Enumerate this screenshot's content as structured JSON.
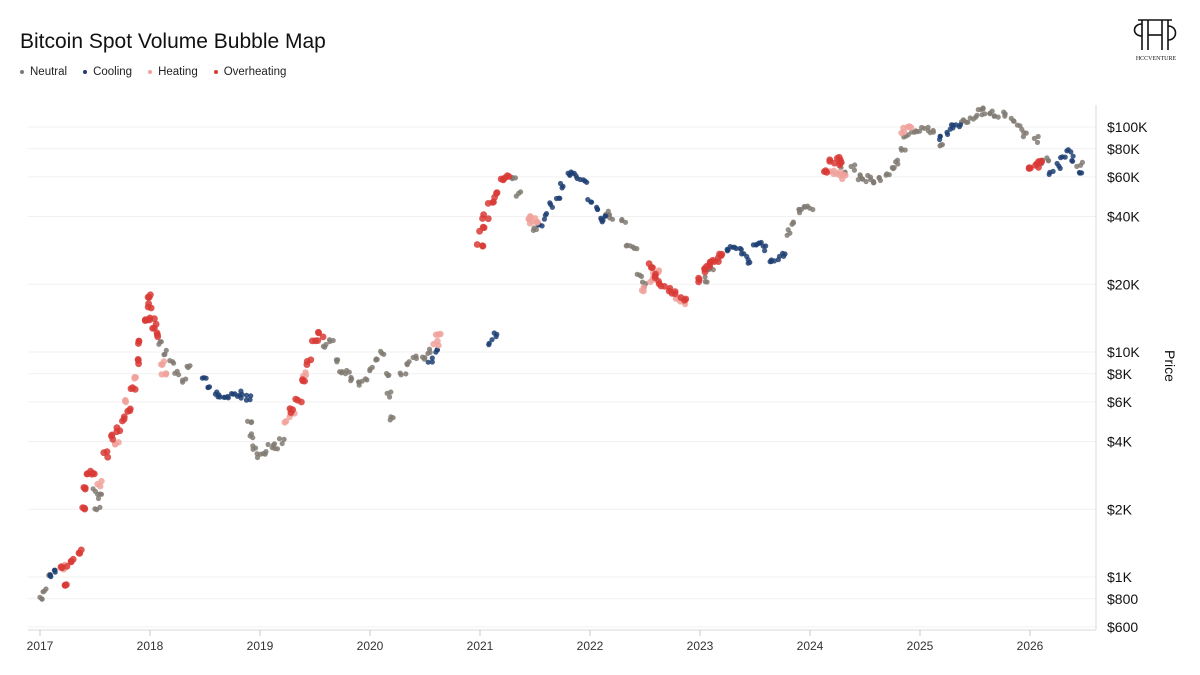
{
  "title": "Bitcoin Spot Volume Bubble Map",
  "logo_text": "HCCVENTURE",
  "legend": [
    {
      "label": "Neutral",
      "color": "#807a72"
    },
    {
      "label": "Cooling",
      "color": "#1f3f73"
    },
    {
      "label": "Heating",
      "color": "#f0a29b"
    },
    {
      "label": "Overheating",
      "color": "#d93a35"
    }
  ],
  "chart_data": {
    "type": "scatter",
    "title": "Bitcoin Spot Volume Bubble Map",
    "xlabel": "",
    "ylabel": "Price",
    "y_scale": "log",
    "ylim": [
      600,
      150000
    ],
    "xlim": [
      2017.0,
      2026.5
    ],
    "x_ticks": [
      "2017",
      "2018",
      "2019",
      "2020",
      "2021",
      "2022",
      "2023",
      "2024",
      "2025",
      "2026"
    ],
    "y_ticks": [
      {
        "value": 100000,
        "label": "$100K"
      },
      {
        "value": 80000,
        "label": "$80K"
      },
      {
        "value": 60000,
        "label": "$60K"
      },
      {
        "value": 40000,
        "label": "$40K"
      },
      {
        "value": 20000,
        "label": "$20K"
      },
      {
        "value": 10000,
        "label": "$10K"
      },
      {
        "value": 8000,
        "label": "$8K"
      },
      {
        "value": 6000,
        "label": "$6K"
      },
      {
        "value": 4000,
        "label": "$4K"
      },
      {
        "value": 2000,
        "label": "$2K"
      },
      {
        "value": 1000,
        "label": "$1K"
      },
      {
        "value": 800,
        "label": "$800"
      },
      {
        "value": 600,
        "label": "$600"
      }
    ],
    "grid": true,
    "legend_position": "top-left",
    "series": [
      {
        "name": "Neutral",
        "color": "#807a72",
        "points": [
          [
            2017.02,
            800
          ],
          [
            2017.05,
            880
          ],
          [
            2017.08,
            1000
          ],
          [
            2017.5,
            2400
          ],
          [
            2017.52,
            2000
          ],
          [
            2017.55,
            2300
          ],
          [
            2018.1,
            11000
          ],
          [
            2018.15,
            10000
          ],
          [
            2018.2,
            9000
          ],
          [
            2018.25,
            8000
          ],
          [
            2018.3,
            7500
          ],
          [
            2018.35,
            8500
          ],
          [
            2018.9,
            5000
          ],
          [
            2018.92,
            4200
          ],
          [
            2018.95,
            3800
          ],
          [
            2019.0,
            3500
          ],
          [
            2019.05,
            3600
          ],
          [
            2019.1,
            3800
          ],
          [
            2019.15,
            3800
          ],
          [
            2019.2,
            4000
          ],
          [
            2019.6,
            10500
          ],
          [
            2019.65,
            11000
          ],
          [
            2019.7,
            9000
          ],
          [
            2019.75,
            8300
          ],
          [
            2019.8,
            8200
          ],
          [
            2019.85,
            7500
          ],
          [
            2019.9,
            7300
          ],
          [
            2019.95,
            7600
          ],
          [
            2020.0,
            8500
          ],
          [
            2020.05,
            9500
          ],
          [
            2020.1,
            9800
          ],
          [
            2020.15,
            8000
          ],
          [
            2020.18,
            6500
          ],
          [
            2020.2,
            5000
          ],
          [
            2020.3,
            8000
          ],
          [
            2020.35,
            9000
          ],
          [
            2020.4,
            9400
          ],
          [
            2020.5,
            9300
          ],
          [
            2020.55,
            10000
          ],
          [
            2021.3,
            58000
          ],
          [
            2021.35,
            50000
          ],
          [
            2021.5,
            35000
          ],
          [
            2022.15,
            42000
          ],
          [
            2022.2,
            40000
          ],
          [
            2022.3,
            38000
          ],
          [
            2022.35,
            30000
          ],
          [
            2022.4,
            29000
          ],
          [
            2022.45,
            22000
          ],
          [
            2022.5,
            20000
          ],
          [
            2023.05,
            21000
          ],
          [
            2023.1,
            23000
          ],
          [
            2023.8,
            34000
          ],
          [
            2023.85,
            37000
          ],
          [
            2023.9,
            42000
          ],
          [
            2023.95,
            43000
          ],
          [
            2024.0,
            44000
          ],
          [
            2024.3,
            64000
          ],
          [
            2024.4,
            66000
          ],
          [
            2024.45,
            60000
          ],
          [
            2024.5,
            58000
          ],
          [
            2024.55,
            60000
          ],
          [
            2024.6,
            56000
          ],
          [
            2024.65,
            59000
          ],
          [
            2024.7,
            62000
          ],
          [
            2024.75,
            65000
          ],
          [
            2024.8,
            70000
          ],
          [
            2024.85,
            80000
          ],
          [
            2024.88,
            90000
          ],
          [
            2024.95,
            95000
          ],
          [
            2025.0,
            97000
          ],
          [
            2025.05,
            98000
          ],
          [
            2025.1,
            96000
          ],
          [
            2025.2,
            84000
          ],
          [
            2025.4,
            105000
          ],
          [
            2025.45,
            108000
          ],
          [
            2025.5,
            110000
          ],
          [
            2025.55,
            116000
          ],
          [
            2025.6,
            118000
          ],
          [
            2025.65,
            115000
          ],
          [
            2025.7,
            112000
          ],
          [
            2025.75,
            113000
          ],
          [
            2025.85,
            108000
          ],
          [
            2025.9,
            100000
          ],
          [
            2025.95,
            93000
          ],
          [
            2026.05,
            88000
          ],
          [
            2026.1,
            70000
          ],
          [
            2026.15,
            72000
          ],
          [
            2026.45,
            68000
          ]
        ]
      },
      {
        "name": "Cooling",
        "color": "#1f3f73",
        "points": [
          [
            2017.1,
            1000
          ],
          [
            2017.15,
            1050
          ],
          [
            2018.5,
            7500
          ],
          [
            2018.55,
            7000
          ],
          [
            2018.6,
            6500
          ],
          [
            2018.65,
            6300
          ],
          [
            2018.7,
            6400
          ],
          [
            2018.75,
            6600
          ],
          [
            2018.8,
            6500
          ],
          [
            2018.85,
            6300
          ],
          [
            2018.9,
            6300
          ],
          [
            2020.55,
            9200
          ],
          [
            2020.6,
            10000
          ],
          [
            2021.1,
            11000
          ],
          [
            2021.15,
            12000
          ],
          [
            2021.55,
            36000
          ],
          [
            2021.6,
            40000
          ],
          [
            2021.65,
            45000
          ],
          [
            2021.7,
            47000
          ],
          [
            2021.75,
            55000
          ],
          [
            2021.8,
            62000
          ],
          [
            2021.85,
            64000
          ],
          [
            2021.9,
            60000
          ],
          [
            2021.95,
            57000
          ],
          [
            2022.0,
            47000
          ],
          [
            2022.05,
            43000
          ],
          [
            2022.1,
            38000
          ],
          [
            2022.12,
            40000
          ],
          [
            2023.25,
            28000
          ],
          [
            2023.3,
            30000
          ],
          [
            2023.35,
            28000
          ],
          [
            2023.4,
            27000
          ],
          [
            2023.45,
            25000
          ],
          [
            2023.5,
            30000
          ],
          [
            2023.55,
            30000
          ],
          [
            2023.6,
            29000
          ],
          [
            2023.65,
            26000
          ],
          [
            2023.7,
            26000
          ],
          [
            2023.75,
            27000
          ],
          [
            2025.2,
            90000
          ],
          [
            2025.25,
            95000
          ],
          [
            2025.3,
            100000
          ],
          [
            2025.35,
            103000
          ],
          [
            2026.2,
            62000
          ],
          [
            2026.25,
            67000
          ],
          [
            2026.3,
            75000
          ],
          [
            2026.35,
            78000
          ],
          [
            2026.4,
            72000
          ],
          [
            2026.45,
            64000
          ]
        ]
      },
      {
        "name": "Heating",
        "color": "#f0a29b",
        "points": [
          [
            2017.2,
            1100
          ],
          [
            2017.55,
            2600
          ],
          [
            2017.7,
            4000
          ],
          [
            2017.8,
            6000
          ],
          [
            2017.85,
            7500
          ],
          [
            2018.1,
            9000
          ],
          [
            2018.12,
            8000
          ],
          [
            2019.25,
            5000
          ],
          [
            2019.3,
            5400
          ],
          [
            2019.4,
            8000
          ],
          [
            2020.6,
            11000
          ],
          [
            2020.62,
            12000
          ],
          [
            2021.45,
            38000
          ],
          [
            2021.48,
            40000
          ],
          [
            2021.5,
            37000
          ],
          [
            2022.5,
            19000
          ],
          [
            2022.55,
            21000
          ],
          [
            2022.6,
            23000
          ],
          [
            2022.8,
            17000
          ],
          [
            2022.85,
            16500
          ],
          [
            2024.2,
            63000
          ],
          [
            2024.25,
            62000
          ],
          [
            2024.3,
            60000
          ],
          [
            2024.85,
            96000
          ],
          [
            2024.9,
            98000
          ]
        ]
      },
      {
        "name": "Overheating",
        "color": "#d93a35",
        "points": [
          [
            2017.22,
            1100
          ],
          [
            2017.25,
            900
          ],
          [
            2017.3,
            1200
          ],
          [
            2017.35,
            1300
          ],
          [
            2017.38,
            2000
          ],
          [
            2017.4,
            2500
          ],
          [
            2017.45,
            2800
          ],
          [
            2017.48,
            2900
          ],
          [
            2017.6,
            3500
          ],
          [
            2017.65,
            4200
          ],
          [
            2017.7,
            4500
          ],
          [
            2017.75,
            5000
          ],
          [
            2017.8,
            5500
          ],
          [
            2017.85,
            7000
          ],
          [
            2017.88,
            9000
          ],
          [
            2017.92,
            11000
          ],
          [
            2017.95,
            14000
          ],
          [
            2017.98,
            18000
          ],
          [
            2018.0,
            16000
          ],
          [
            2018.02,
            14000
          ],
          [
            2018.05,
            13000
          ],
          [
            2018.08,
            12000
          ],
          [
            2019.3,
            5500
          ],
          [
            2019.35,
            6000
          ],
          [
            2019.4,
            7500
          ],
          [
            2019.45,
            9000
          ],
          [
            2019.5,
            11000
          ],
          [
            2019.55,
            12000
          ],
          [
            2021.0,
            30000
          ],
          [
            2021.02,
            35000
          ],
          [
            2021.05,
            40000
          ],
          [
            2021.1,
            45000
          ],
          [
            2021.15,
            50000
          ],
          [
            2021.2,
            58000
          ],
          [
            2021.25,
            60000
          ],
          [
            2022.55,
            24000
          ],
          [
            2022.6,
            22000
          ],
          [
            2022.65,
            20000
          ],
          [
            2022.7,
            19000
          ],
          [
            2022.75,
            18000
          ],
          [
            2022.85,
            17000
          ],
          [
            2023.0,
            21000
          ],
          [
            2023.05,
            23000
          ],
          [
            2023.08,
            24000
          ],
          [
            2023.1,
            25000
          ],
          [
            2023.15,
            26000
          ],
          [
            2023.2,
            27000
          ],
          [
            2024.15,
            64000
          ],
          [
            2024.2,
            70000
          ],
          [
            2024.25,
            72000
          ],
          [
            2024.28,
            68000
          ],
          [
            2026.0,
            65000
          ],
          [
            2026.05,
            68000
          ],
          [
            2026.1,
            70000
          ]
        ]
      }
    ]
  }
}
